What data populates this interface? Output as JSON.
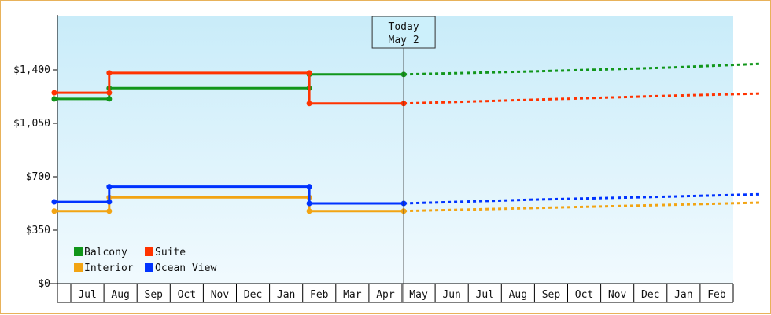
{
  "chart_data": {
    "type": "line",
    "title": "",
    "xlabel": "",
    "ylabel": "",
    "ylim": [
      0,
      1750
    ],
    "yticks": [
      {
        "value": 0,
        "label": "$0"
      },
      {
        "value": 350,
        "label": "$350"
      },
      {
        "value": 700,
        "label": "$700"
      },
      {
        "value": 1050,
        "label": "$1,050"
      },
      {
        "value": 1400,
        "label": "$1,400"
      }
    ],
    "x_months": [
      "Jul",
      "Aug",
      "Sep",
      "Oct",
      "Nov",
      "Dec",
      "Jan",
      "Feb",
      "Mar",
      "Apr",
      "May",
      "Jun",
      "Jul",
      "Aug",
      "Sep",
      "Oct",
      "Nov",
      "Dec",
      "Jan",
      "Feb"
    ],
    "today": {
      "line1": "Today",
      "line2": "May 2",
      "x": 10.05
    },
    "legend_position": "bottom-left",
    "series": [
      {
        "name": "Balcony",
        "color": "#11961b",
        "history": [
          [
            -0.5,
            1210
          ],
          [
            1.16,
            1210
          ],
          [
            1.16,
            1280
          ],
          [
            7.2,
            1280
          ],
          [
            7.2,
            1370
          ],
          [
            10.05,
            1370
          ]
        ],
        "forecast": [
          [
            10.05,
            1370
          ],
          [
            14,
            1390
          ],
          [
            18,
            1415
          ],
          [
            20.8,
            1440
          ]
        ]
      },
      {
        "name": "Suite",
        "color": "#ff3300",
        "history": [
          [
            -0.5,
            1250
          ],
          [
            1.16,
            1250
          ],
          [
            1.16,
            1380
          ],
          [
            7.2,
            1380
          ],
          [
            7.2,
            1180
          ],
          [
            10.05,
            1180
          ]
        ],
        "forecast": [
          [
            10.05,
            1180
          ],
          [
            14,
            1205
          ],
          [
            18,
            1230
          ],
          [
            20.8,
            1245
          ]
        ]
      },
      {
        "name": "Interior",
        "color": "#f2a413",
        "history": [
          [
            -0.5,
            475
          ],
          [
            1.16,
            475
          ],
          [
            1.16,
            565
          ],
          [
            7.2,
            565
          ],
          [
            7.2,
            475
          ],
          [
            10.05,
            475
          ]
        ],
        "forecast": [
          [
            10.05,
            475
          ],
          [
            14,
            495
          ],
          [
            18,
            515
          ],
          [
            20.8,
            530
          ]
        ]
      },
      {
        "name": "Ocean View",
        "color": "#0033ff",
        "history": [
          [
            -0.5,
            535
          ],
          [
            1.16,
            535
          ],
          [
            1.16,
            635
          ],
          [
            7.2,
            635
          ],
          [
            7.2,
            525
          ],
          [
            10.05,
            525
          ]
        ],
        "forecast": [
          [
            10.05,
            525
          ],
          [
            14,
            550
          ],
          [
            18,
            570
          ],
          [
            20.8,
            585
          ]
        ]
      }
    ]
  }
}
